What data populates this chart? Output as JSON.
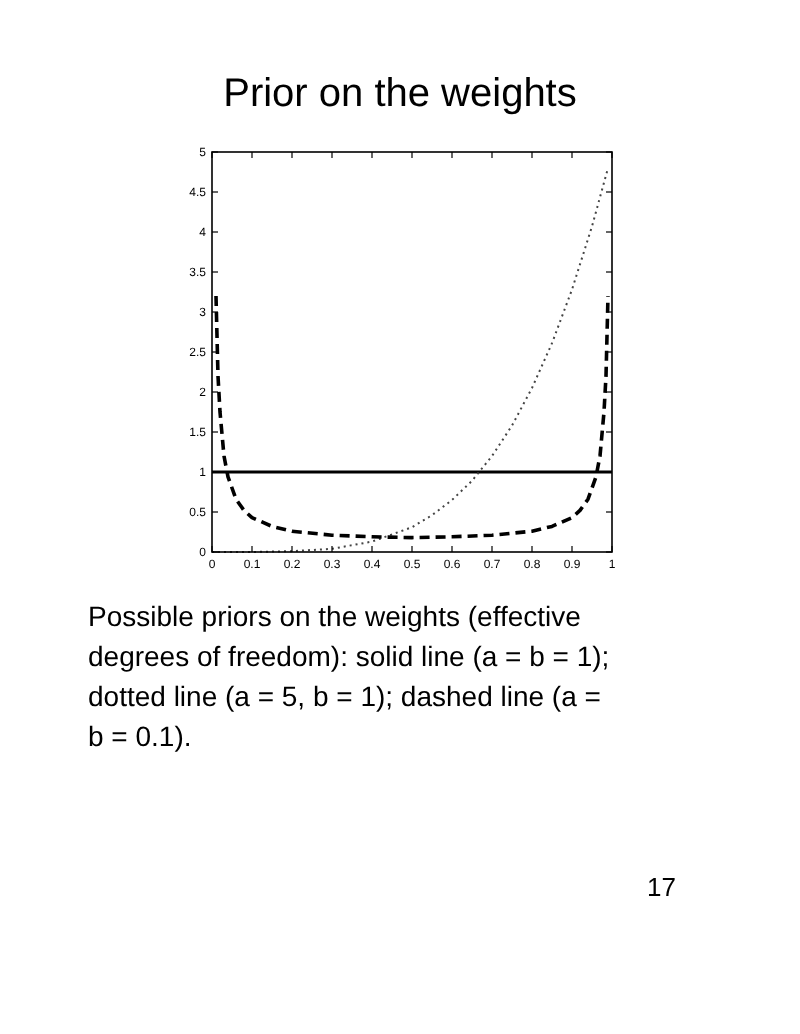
{
  "chart_data": {
    "type": "line",
    "title": "Prior on the weights",
    "xlim": [
      0,
      1
    ],
    "ylim": [
      0,
      5
    ],
    "xticks": [
      0,
      0.1,
      0.2,
      0.3,
      0.4,
      0.5,
      0.6,
      0.7,
      0.8,
      0.9,
      1
    ],
    "yticks": [
      0,
      0.5,
      1,
      1.5,
      2,
      2.5,
      3,
      3.5,
      4,
      4.5,
      5
    ],
    "marker": "none",
    "grid": false,
    "series": [
      {
        "color": "#000000",
        "line_style": "solid",
        "x": [
          0,
          1
        ],
        "values": [
          1,
          1
        ]
      },
      {
        "color": "#444444",
        "line_style": "dotted",
        "x": [
          0,
          0.1,
          0.2,
          0.3,
          0.4,
          0.5,
          0.55,
          0.6,
          0.65,
          0.7,
          0.75,
          0.8,
          0.85,
          0.9,
          0.95,
          0.99
        ],
        "values": [
          0,
          0,
          0.01,
          0.04,
          0.13,
          0.31,
          0.46,
          0.65,
          0.89,
          1.2,
          1.58,
          2.05,
          2.61,
          3.28,
          4.07,
          4.8
        ]
      },
      {
        "color": "#000000",
        "line_style": "dashed",
        "x": [
          0.01,
          0.015,
          0.02,
          0.03,
          0.04,
          0.06,
          0.08,
          0.1,
          0.15,
          0.2,
          0.3,
          0.4,
          0.5,
          0.6,
          0.7,
          0.8,
          0.85,
          0.9,
          0.92,
          0.94,
          0.96,
          0.97,
          0.98,
          0.985,
          0.99
        ],
        "values": [
          3.2,
          2.2,
          1.75,
          1.2,
          0.94,
          0.66,
          0.52,
          0.43,
          0.32,
          0.26,
          0.21,
          0.19,
          0.18,
          0.19,
          0.21,
          0.26,
          0.32,
          0.43,
          0.52,
          0.66,
          0.94,
          1.2,
          1.75,
          2.2,
          3.2
        ]
      }
    ],
    "annotations": [
      "Possible priors on the weights (effective degrees of freedom): solid line (a = b = 1); dotted line (a = 5, b = 1); dashed line (a = b = 0.1).",
      "17"
    ]
  }
}
